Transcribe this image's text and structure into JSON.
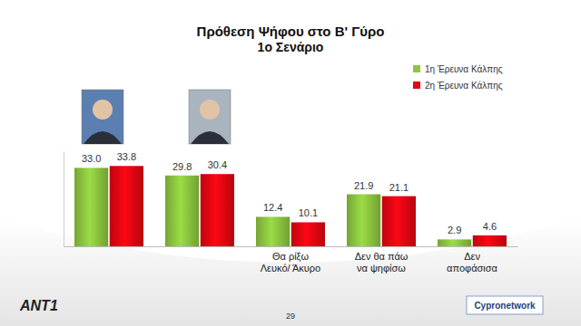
{
  "chart_data": {
    "type": "bar",
    "title": "Πρόθεση Ψήφου στο Β' Γύρο",
    "subtitle": "1ο Σενάριο",
    "categories": [
      null,
      null,
      "Θα ρίξω Λευκό/ Άκυρο",
      "Δεν θα πάω να ψηφίσω",
      "Δεν αποφάσισα"
    ],
    "series": [
      {
        "name": "1η Έρευνα Κάλπης",
        "color": "#8cc63f",
        "values": [
          33.0,
          29.8,
          12.4,
          21.9,
          2.9
        ],
        "value_labels": [
          "33.0",
          "29.8",
          "12.4",
          "21.9",
          "2.9"
        ]
      },
      {
        "name": "2η Έρευνα Κάλπης",
        "color": "#e30613",
        "values": [
          33.8,
          30.4,
          10.1,
          21.1,
          4.6
        ],
        "value_labels": [
          "33.8",
          "30.4",
          "10.1",
          "21.1",
          "4.6"
        ]
      }
    ],
    "ylim": [
      0,
      40
    ],
    "yticks": [],
    "data_labels": true,
    "tick_labels": "x",
    "legend": "top-right",
    "annotations": [
      "29",
      "ANT1",
      "Cypronetwork"
    ]
  }
}
